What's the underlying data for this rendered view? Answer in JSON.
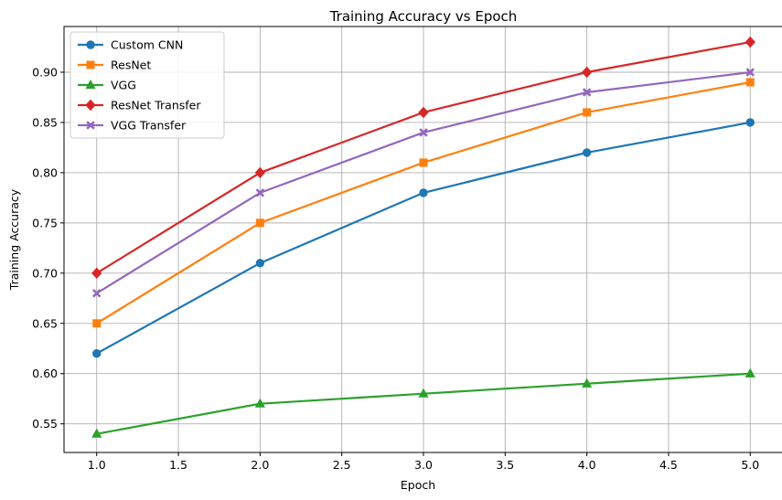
{
  "chart_data": {
    "type": "line",
    "title": "Training Accuracy vs Epoch",
    "xlabel": "Epoch",
    "ylabel": "Training Accuracy",
    "xlim": [
      0.8,
      5.2
    ],
    "ylim": [
      0.5215,
      0.9455
    ],
    "xticks": [
      1.0,
      1.5,
      2.0,
      2.5,
      3.0,
      3.5,
      4.0,
      4.5,
      5.0
    ],
    "xtick_labels": [
      "1.0",
      "1.5",
      "2.0",
      "2.5",
      "3.0",
      "3.5",
      "4.0",
      "4.5",
      "5.0"
    ],
    "yticks": [
      0.55,
      0.6,
      0.65,
      0.7,
      0.75,
      0.8,
      0.85,
      0.9
    ],
    "ytick_labels": [
      "0.55",
      "0.60",
      "0.65",
      "0.70",
      "0.75",
      "0.80",
      "0.85",
      "0.90"
    ],
    "grid": true,
    "legend_position": "top-left",
    "x": [
      1,
      2,
      3,
      4,
      5
    ],
    "series": [
      {
        "name": "Custom CNN",
        "values": [
          0.62,
          0.71,
          0.78,
          0.82,
          0.85
        ],
        "color": "#1f77b4",
        "marker": "circle"
      },
      {
        "name": "ResNet",
        "values": [
          0.65,
          0.75,
          0.81,
          0.86,
          0.89
        ],
        "color": "#ff7f0e",
        "marker": "square"
      },
      {
        "name": "VGG",
        "values": [
          0.54,
          0.57,
          0.58,
          0.59,
          0.6
        ],
        "color": "#2ca02c",
        "marker": "triangle"
      },
      {
        "name": "ResNet Transfer",
        "values": [
          0.7,
          0.8,
          0.86,
          0.9,
          0.93
        ],
        "color": "#d62728",
        "marker": "diamond"
      },
      {
        "name": "VGG Transfer",
        "values": [
          0.68,
          0.78,
          0.84,
          0.88,
          0.9
        ],
        "color": "#9467bd",
        "marker": "x-filled"
      }
    ]
  }
}
